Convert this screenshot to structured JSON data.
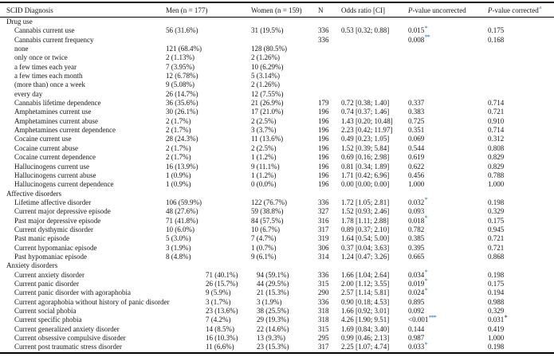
{
  "colors": {
    "star_blue": "#2e74b5",
    "star_black": "#151515",
    "text": "#151515",
    "rule": "#000000"
  },
  "header": {
    "columns": [
      {
        "text": "SCID Diagnosis",
        "italic_first_char": false,
        "superscript": ""
      },
      {
        "text": "Men (n = 177)",
        "italic_first_char": false,
        "superscript": ""
      },
      {
        "text": "Women (n = 159)",
        "italic_first_char": false,
        "superscript": ""
      },
      {
        "text": "N",
        "italic_first_char": false,
        "superscript": ""
      },
      {
        "text": "Odds ratio [CI]",
        "italic_first_char": false,
        "superscript": ""
      },
      {
        "text": "P-value uncorrected",
        "italic_first_char": true,
        "superscript": ""
      },
      {
        "text": "P-value corrected",
        "italic_first_char": true,
        "superscript": "a"
      }
    ]
  },
  "sections": [
    {
      "title": "Drug use",
      "shifted_columns": false,
      "rows": [
        {
          "label": "Cannabis current use",
          "men": "56 (31.6%)",
          "women": "31 (19.5%)",
          "n": "336",
          "odds_ratio": "0.53 [0.32; 0.88]",
          "p_uncorrected": "0.015",
          "p_uncorrected_stars": "*",
          "p_corrected": "0.175",
          "p_corrected_stars": ""
        },
        {
          "label": "Cannabis current frequency",
          "men": "",
          "women": "",
          "n": "336",
          "odds_ratio": "",
          "p_uncorrected": "0.008",
          "p_uncorrected_stars": "**",
          "p_corrected": "0.168",
          "p_corrected_stars": ""
        },
        {
          "label": "none",
          "men": "121 (68.4%)",
          "women": "128 (80.5%)",
          "n": "",
          "odds_ratio": "",
          "p_uncorrected": "",
          "p_uncorrected_stars": "",
          "p_corrected": "",
          "p_corrected_stars": ""
        },
        {
          "label": "only once or twice",
          "men": "2 (1.13%)",
          "women": "2 (1.26%)",
          "n": "",
          "odds_ratio": "",
          "p_uncorrected": "",
          "p_uncorrected_stars": "",
          "p_corrected": "",
          "p_corrected_stars": ""
        },
        {
          "label": "a few times each year",
          "men": "7 (3.95%)",
          "women": "10 (6.29%)",
          "n": "",
          "odds_ratio": "",
          "p_uncorrected": "",
          "p_uncorrected_stars": "",
          "p_corrected": "",
          "p_corrected_stars": ""
        },
        {
          "label": "a few times each month",
          "men": "12 (6.78%)",
          "women": "5 (3.14%)",
          "n": "",
          "odds_ratio": "",
          "p_uncorrected": "",
          "p_uncorrected_stars": "",
          "p_corrected": "",
          "p_corrected_stars": ""
        },
        {
          "label": "(more than) once a week",
          "men": "9 (5.08%)",
          "women": "2 (1.26%)",
          "n": "",
          "odds_ratio": "",
          "p_uncorrected": "",
          "p_uncorrected_stars": "",
          "p_corrected": "",
          "p_corrected_stars": ""
        },
        {
          "label": "every day",
          "men": "26 (14.7%)",
          "women": "12 (7.55%)",
          "n": "",
          "odds_ratio": "",
          "p_uncorrected": "",
          "p_uncorrected_stars": "",
          "p_corrected": "",
          "p_corrected_stars": ""
        },
        {
          "label": "Cannabis lifetime dependence",
          "men": "36 (35.6%)",
          "women": "21 (26.9%)",
          "n": "179",
          "odds_ratio": "0.72 [0.38; 1.40]",
          "p_uncorrected": "0.337",
          "p_uncorrected_stars": "",
          "p_corrected": "0.714",
          "p_corrected_stars": ""
        },
        {
          "label": "Amphetamines current use",
          "men": "30 (26.1%)",
          "women": "17 (21.0%)",
          "n": "196",
          "odds_ratio": "0.74 [0.37; 1.46]",
          "p_uncorrected": "0.383",
          "p_uncorrected_stars": "",
          "p_corrected": "0.721",
          "p_corrected_stars": ""
        },
        {
          "label": "Amphetamines current abuse",
          "men": "2 (1.7%)",
          "women": "2 (2.5%)",
          "n": "196",
          "odds_ratio": "1.43 [0.20; 10.48]",
          "p_uncorrected": "0.725",
          "p_uncorrected_stars": "",
          "p_corrected": "0.910",
          "p_corrected_stars": ""
        },
        {
          "label": "Amphetamines current dependence",
          "men": "2 (1.7%)",
          "women": "3 (3.7%)",
          "n": "196",
          "odds_ratio": "2.23 [0.42; 11.97]",
          "p_uncorrected": "0.351",
          "p_uncorrected_stars": "",
          "p_corrected": "0.714",
          "p_corrected_stars": ""
        },
        {
          "label": "Cocaine current use",
          "men": "28 (24.3%)",
          "women": "11 (13.6%)",
          "n": "196",
          "odds_ratio": "0.49 [0.23; 1.05]",
          "p_uncorrected": "0.069",
          "p_uncorrected_stars": "",
          "p_corrected": "0.312",
          "p_corrected_stars": ""
        },
        {
          "label": "Cocaine current abuse",
          "men": "2 (1.7%)",
          "women": "2 (2.5%)",
          "n": "196",
          "odds_ratio": "1.52 [0.39; 5.84]",
          "p_uncorrected": "0.544",
          "p_uncorrected_stars": "",
          "p_corrected": "0.808",
          "p_corrected_stars": ""
        },
        {
          "label": "Cocaine current dependence",
          "men": "2 (1.7%)",
          "women": "1 (1.2%)",
          "n": "196",
          "odds_ratio": "0.69 [0.16; 2.98]",
          "p_uncorrected": "0.619",
          "p_uncorrected_stars": "",
          "p_corrected": "0.829",
          "p_corrected_stars": ""
        },
        {
          "label": "Hallucinogens current use",
          "men": "16 (13.9%)",
          "women": "9 (11.1%)",
          "n": "196",
          "odds_ratio": "0.81 [0.34; 1.89]",
          "p_uncorrected": "0.622",
          "p_uncorrected_stars": "",
          "p_corrected": "0.829",
          "p_corrected_stars": ""
        },
        {
          "label": "Hallucinogens current abuse",
          "men": "1 (0.9%)",
          "women": "1 (1.2%)",
          "n": "196",
          "odds_ratio": "1.71 [0.42; 6.96]",
          "p_uncorrected": "0.456",
          "p_uncorrected_stars": "",
          "p_corrected": "0.788",
          "p_corrected_stars": ""
        },
        {
          "label": "Hallucinogens current dependence",
          "men": "1 (0.9%)",
          "women": "0 (0.0%)",
          "n": "196",
          "odds_ratio": "0.00 [0.00; 0.00]",
          "p_uncorrected": "1.000",
          "p_uncorrected_stars": "",
          "p_corrected": "1.000",
          "p_corrected_stars": ""
        }
      ]
    },
    {
      "title": "Affective disorders",
      "shifted_columns": false,
      "rows": [
        {
          "label": "Lifetime affective disorder",
          "men": "106 (59.9%)",
          "women": "122 (76.7%)",
          "n": "336",
          "odds_ratio": "1.72 [1.05; 2.81]",
          "p_uncorrected": "0.032",
          "p_uncorrected_stars": "*",
          "p_corrected": "0.198",
          "p_corrected_stars": ""
        },
        {
          "label": "Current major depressive episode",
          "men": "48 (27.6%)",
          "women": "59 (38.8%)",
          "n": "327",
          "odds_ratio": "1.52 [0.93; 2.46]",
          "p_uncorrected": "0.093",
          "p_uncorrected_stars": "",
          "p_corrected": "0.329",
          "p_corrected_stars": ""
        },
        {
          "label": "Past major depressive episode",
          "men": "71 (41.8%)",
          "women": "84 (57.5%)",
          "n": "316",
          "odds_ratio": "1.78 [1.11; 2.88]",
          "p_uncorrected": "0.018",
          "p_uncorrected_stars": "*",
          "p_corrected": "0.175",
          "p_corrected_stars": ""
        },
        {
          "label": "Current dysthymic disorder",
          "men": "10 (6.0%)",
          "women": "10 (6.7%)",
          "n": "317",
          "odds_ratio": "0.89 [0.37; 2.10]",
          "p_uncorrected": "0.782",
          "p_uncorrected_stars": "",
          "p_corrected": "0.945",
          "p_corrected_stars": ""
        },
        {
          "label": "Past manic episode",
          "men": "5 (3.0%)",
          "women": "7 (4.7%)",
          "n": "319",
          "odds_ratio": "1.64 [0.54; 5.00]",
          "p_uncorrected": "0.385",
          "p_uncorrected_stars": "",
          "p_corrected": "0.721",
          "p_corrected_stars": ""
        },
        {
          "label": "Current hypomaniac episode",
          "men": "3 (1.9%)",
          "women": "1 (0.7%)",
          "n": "306",
          "odds_ratio": "0.37 [0.04; 3.63]",
          "p_uncorrected": "0.395",
          "p_uncorrected_stars": "",
          "p_corrected": "0.721",
          "p_corrected_stars": ""
        },
        {
          "label": "Past hypomaniac episode",
          "men": "8 (4.8%)",
          "women": "9 (6.1%)",
          "n": "314",
          "odds_ratio": "1.24 [0.47; 3.26]",
          "p_uncorrected": "0.665",
          "p_uncorrected_stars": "",
          "p_corrected": "0.868",
          "p_corrected_stars": ""
        }
      ]
    },
    {
      "title": "Anxiety disorders",
      "shifted_columns": true,
      "rows": [
        {
          "label": "Current anxiety disorder",
          "men": "71 (40.1%)",
          "women": "94 (59.1%)",
          "n": "336",
          "odds_ratio": "1.66 [1.04; 2.64]",
          "p_uncorrected": "0.034",
          "p_uncorrected_stars": "*",
          "p_corrected": "0.198",
          "p_corrected_stars": ""
        },
        {
          "label": "Current panic disorder",
          "men": "26 (15.7%)",
          "women": "44 (29.5%)",
          "n": "315",
          "odds_ratio": "2.00 [1.12; 3.55]",
          "p_uncorrected": "0.019",
          "p_uncorrected_stars": "*",
          "p_corrected": "0.175",
          "p_corrected_stars": ""
        },
        {
          "label": "Current panic disorder with agoraphobia",
          "men": "9 (5.9%)",
          "women": "21 (15.3%)",
          "n": "290",
          "odds_ratio": "2.57 [1.14; 5.81]",
          "p_uncorrected": "0.024",
          "p_uncorrected_stars": "*",
          "p_corrected": "0.194",
          "p_corrected_stars": ""
        },
        {
          "label": "Current agoraphobia without history of panic disorder",
          "men": "3 (1.7%)",
          "women": "3 (1.9%)",
          "n": "336",
          "odds_ratio": "0.90 [0.18; 4.53]",
          "p_uncorrected": "0.895",
          "p_uncorrected_stars": "",
          "p_corrected": "0.988",
          "p_corrected_stars": ""
        },
        {
          "label": "Current social phobia",
          "men": "23 (13.6%)",
          "women": "38 (25.5%)",
          "n": "318",
          "odds_ratio": "1.66 [0.92; 3.01]",
          "p_uncorrected": "0.092",
          "p_uncorrected_stars": "",
          "p_corrected": "0.329",
          "p_corrected_stars": ""
        },
        {
          "label": "Current specific phobia",
          "men": "7 (4.2%)",
          "women": "29 (19.3%)",
          "n": "318",
          "odds_ratio": "4.26 [1.90; 9.51]",
          "p_uncorrected": "<0.001",
          "p_uncorrected_stars": "***",
          "p_corrected": "0.031",
          "p_corrected_stars": "*"
        },
        {
          "label": "Current generalized anxiety disorder",
          "men": "14 (8.5%)",
          "women": "22 (14.6%)",
          "n": "315",
          "odds_ratio": "1.69 [0.84; 3.40]",
          "p_uncorrected": "0.144",
          "p_uncorrected_stars": "",
          "p_corrected": "0.419",
          "p_corrected_stars": ""
        },
        {
          "label": "Current obsessive compulsive disorder",
          "men": "16 (10.3%)",
          "women": "13 (9.3%)",
          "n": "295",
          "odds_ratio": "0.99 [0.46; 2.13]",
          "p_uncorrected": "0.987",
          "p_uncorrected_stars": "",
          "p_corrected": "1.000",
          "p_corrected_stars": ""
        },
        {
          "label": "Current post traumatic stress disorder",
          "men": "11 (6.6%)",
          "women": "23 (15.3%)",
          "n": "317",
          "odds_ratio": "2.25 [1.07; 4.74]",
          "p_uncorrected": "0.033",
          "p_uncorrected_stars": "*",
          "p_corrected": "0.198",
          "p_corrected_stars": ""
        }
      ]
    }
  ]
}
